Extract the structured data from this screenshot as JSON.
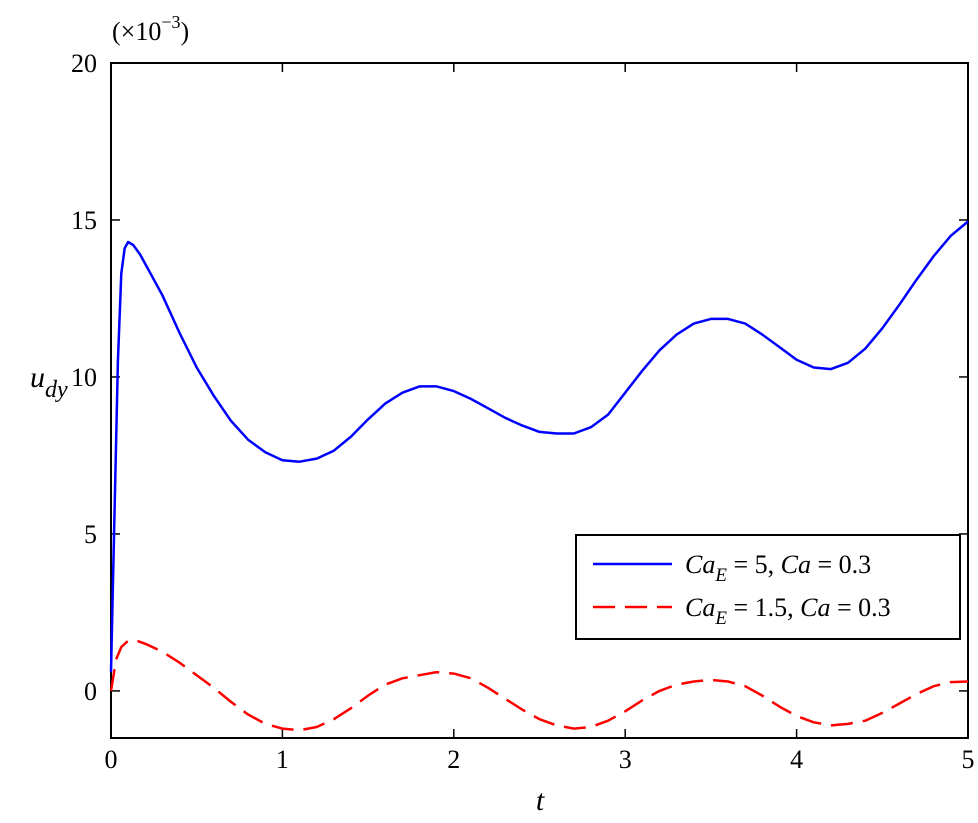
{
  "chart_data": {
    "type": "line",
    "xlabel": "t",
    "ylabel": {
      "main": "u",
      "sub": "dy"
    },
    "multiplier": {
      "prefix": "(×10",
      "exponent": "−3",
      "suffix": ")"
    },
    "xlim": [
      0,
      5
    ],
    "ylim": [
      -1.5,
      20
    ],
    "xticks": [
      "0",
      "1",
      "2",
      "3",
      "4",
      "5"
    ],
    "yticks": [
      "0",
      "5",
      "10",
      "15",
      "20"
    ],
    "grid": false,
    "legend_position": "lower-right",
    "series": [
      {
        "name": "Ca_E = 5, Ca = 0.3",
        "legend": {
          "a": "Ca",
          "b": "E",
          "c": " = 5, ",
          "d": "Ca",
          "e": " = 0.3"
        },
        "color": "#0000ff",
        "dash": "solid",
        "x": [
          0,
          0.02,
          0.04,
          0.06,
          0.08,
          0.1,
          0.13,
          0.17,
          0.22,
          0.3,
          0.4,
          0.5,
          0.6,
          0.7,
          0.8,
          0.9,
          1.0,
          1.1,
          1.2,
          1.3,
          1.4,
          1.5,
          1.6,
          1.7,
          1.8,
          1.9,
          2.0,
          2.1,
          2.2,
          2.3,
          2.4,
          2.5,
          2.6,
          2.7,
          2.8,
          2.9,
          3.0,
          3.1,
          3.2,
          3.3,
          3.4,
          3.5,
          3.6,
          3.7,
          3.8,
          3.9,
          4.0,
          4.1,
          4.2,
          4.3,
          4.4,
          4.5,
          4.6,
          4.7,
          4.8,
          4.9,
          5.0
        ],
        "y": [
          0.6,
          5.5,
          10.5,
          13.3,
          14.1,
          14.3,
          14.2,
          13.9,
          13.4,
          12.6,
          11.4,
          10.3,
          9.4,
          8.6,
          8.0,
          7.6,
          7.35,
          7.3,
          7.4,
          7.65,
          8.1,
          8.65,
          9.15,
          9.5,
          9.7,
          9.7,
          9.55,
          9.3,
          9.0,
          8.7,
          8.45,
          8.25,
          8.2,
          8.2,
          8.4,
          8.8,
          9.5,
          10.2,
          10.85,
          11.35,
          11.7,
          11.85,
          11.85,
          11.7,
          11.35,
          10.95,
          10.55,
          10.3,
          10.25,
          10.45,
          10.9,
          11.55,
          12.3,
          13.1,
          13.85,
          14.5,
          14.95
        ]
      },
      {
        "name": "Ca_E = 1.5, Ca = 0.3",
        "legend": {
          "a": "Ca",
          "b": "E",
          "c": " = 1.5, ",
          "d": "Ca",
          "e": " = 0.3"
        },
        "color": "#ff0000",
        "dash": "dashed",
        "x": [
          0,
          0.03,
          0.06,
          0.1,
          0.15,
          0.2,
          0.3,
          0.4,
          0.5,
          0.6,
          0.7,
          0.8,
          0.9,
          1.0,
          1.1,
          1.2,
          1.3,
          1.4,
          1.5,
          1.6,
          1.7,
          1.8,
          1.9,
          2.0,
          2.1,
          2.2,
          2.3,
          2.4,
          2.5,
          2.6,
          2.7,
          2.8,
          2.9,
          3.0,
          3.1,
          3.2,
          3.3,
          3.4,
          3.5,
          3.6,
          3.7,
          3.8,
          3.9,
          4.0,
          4.1,
          4.2,
          4.3,
          4.4,
          4.5,
          4.6,
          4.7,
          4.8,
          4.9,
          5.0
        ],
        "y": [
          0.0,
          1.0,
          1.4,
          1.6,
          1.6,
          1.5,
          1.25,
          0.9,
          0.5,
          0.1,
          -0.35,
          -0.75,
          -1.05,
          -1.2,
          -1.25,
          -1.15,
          -0.9,
          -0.55,
          -0.15,
          0.2,
          0.4,
          0.5,
          0.6,
          0.55,
          0.4,
          0.1,
          -0.25,
          -0.6,
          -0.9,
          -1.1,
          -1.2,
          -1.15,
          -0.95,
          -0.65,
          -0.3,
          0.0,
          0.2,
          0.3,
          0.35,
          0.3,
          0.15,
          -0.15,
          -0.5,
          -0.8,
          -1.0,
          -1.1,
          -1.05,
          -0.95,
          -0.7,
          -0.4,
          -0.1,
          0.15,
          0.28,
          0.3
        ]
      }
    ]
  }
}
